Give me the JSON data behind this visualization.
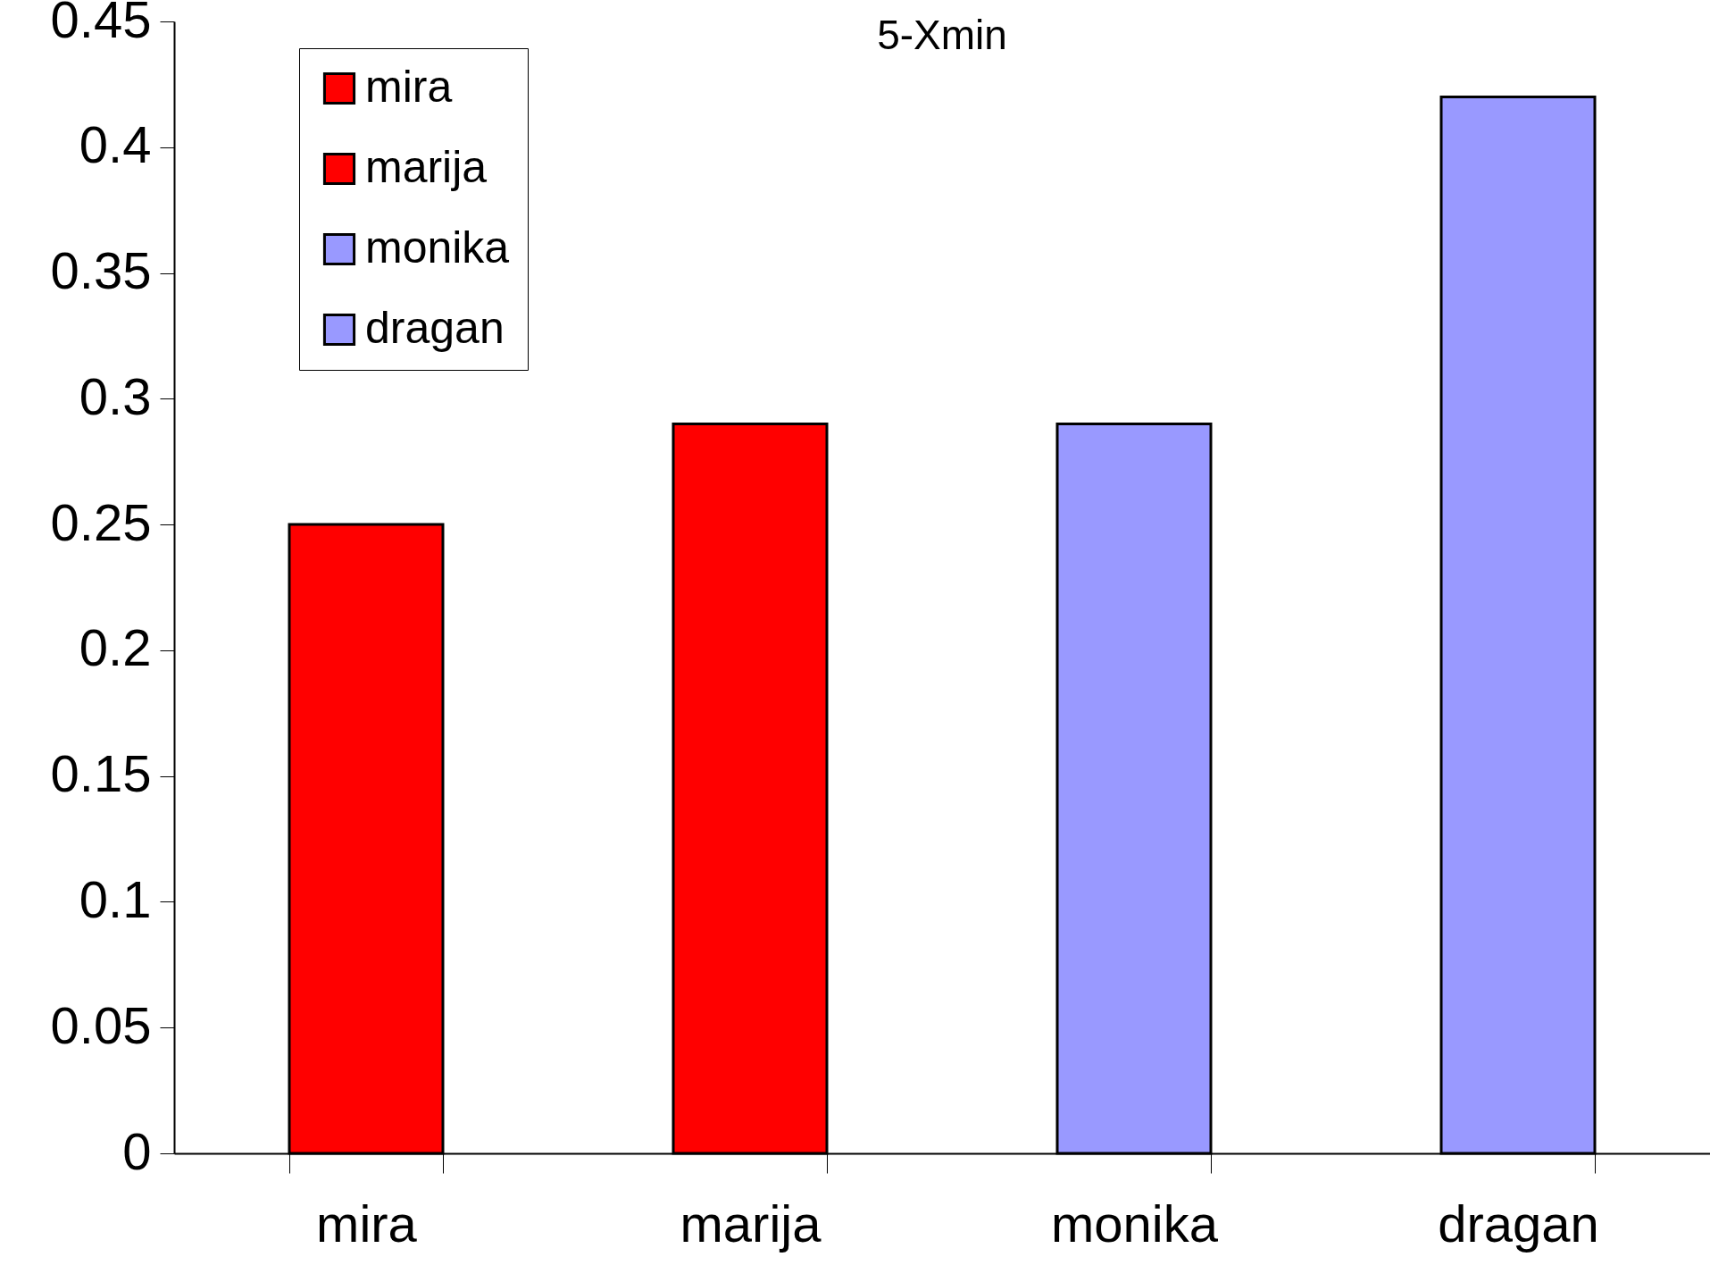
{
  "chart_data": {
    "type": "bar",
    "title": "5-Xmin",
    "categories": [
      "mira",
      "marija",
      "monika",
      "dragan"
    ],
    "stacked": true,
    "series": [
      {
        "name": "mira",
        "color": "#ff0000",
        "values": [
          0.25,
          null,
          null,
          null
        ]
      },
      {
        "name": "marija",
        "color": "#ff0000",
        "values": [
          null,
          0.29,
          null,
          null
        ]
      },
      {
        "name": "monika",
        "color": "#9999ff",
        "values": [
          null,
          null,
          0.29,
          null
        ]
      },
      {
        "name": "dragan",
        "color": "#9999ff",
        "values": [
          null,
          null,
          null,
          0.42
        ]
      }
    ],
    "ylim": [
      0,
      0.45
    ],
    "yticks": [
      0,
      0.05,
      0.1,
      0.15,
      0.2,
      0.25,
      0.3,
      0.35,
      0.4,
      0.45
    ],
    "grid": false,
    "legend": "top left"
  }
}
